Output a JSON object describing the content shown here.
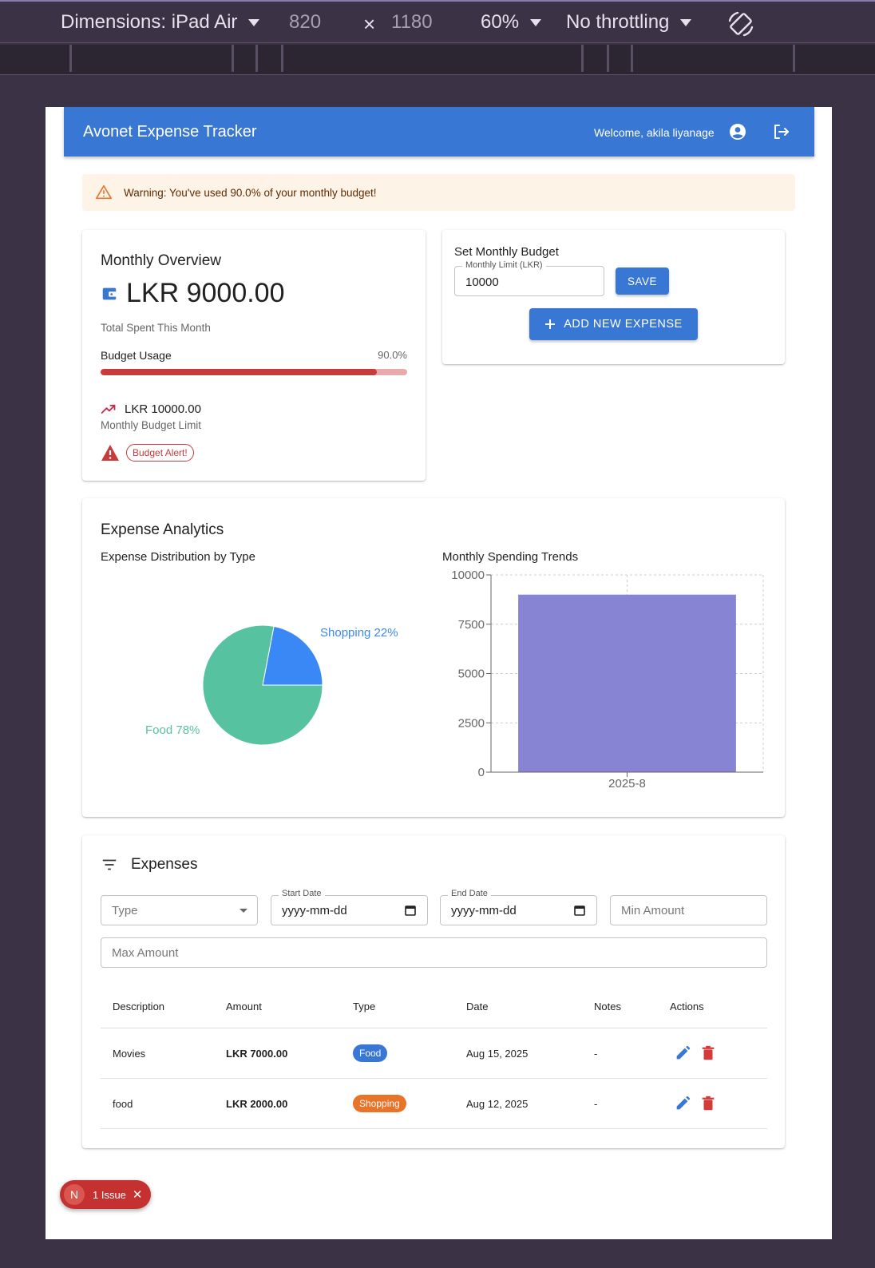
{
  "devtools": {
    "dimensions_label": "Dimensions: iPad Air",
    "width": "820",
    "times": "×",
    "height": "1180",
    "zoom": "60%",
    "throttling": "No throttling",
    "rotate_icon": "rotate-icon"
  },
  "header": {
    "title": "Avonet Expense Tracker",
    "welcome": "Welcome, akila liyanage",
    "account_icon": "account-circle-icon",
    "logout_icon": "logout-icon",
    "bg_color": "#3878d4"
  },
  "warning": {
    "text": "Warning: You've used 90.0% of your monthly budget!",
    "icon": "warning-outline-icon"
  },
  "overview": {
    "title": "Monthly Overview",
    "total": "LKR 9000.00",
    "total_label": "Total Spent This Month",
    "usage_label": "Budget Usage",
    "usage_pct": "90.0%",
    "usage_value": 0.9,
    "limit": "LKR 10000.00",
    "limit_label": "Monthly Budget Limit",
    "alert_chip": "Budget Alert!",
    "alert_color": "#c73b3b"
  },
  "budget": {
    "title": "Set Monthly Budget",
    "field_label": "Monthly Limit (LKR)",
    "field_value": "10000",
    "save_label": "SAVE",
    "add_label": "ADD NEW EXPENSE"
  },
  "analytics": {
    "title": "Expense Analytics",
    "pie_title": "Expense Distribution by Type",
    "bar_title": "Monthly Spending Trends"
  },
  "chart_data": [
    {
      "type": "pie",
      "title": "Expense Distribution by Type",
      "slices": [
        {
          "label": "Food 78%",
          "name": "Food",
          "value": 78,
          "color": "#56c29f"
        },
        {
          "label": "Shopping 22%",
          "name": "Shopping",
          "value": 22,
          "color": "#3a88f6"
        }
      ]
    },
    {
      "type": "bar",
      "title": "Monthly Spending Trends",
      "categories": [
        "2025-8"
      ],
      "values": [
        9000
      ],
      "ylim": [
        0,
        10000
      ],
      "yticks": [
        0,
        2500,
        5000,
        7500,
        10000
      ],
      "bar_color": "#8884d4",
      "grid": true
    }
  ],
  "expenses": {
    "title": "Expenses",
    "filter_icon": "filter-list-icon",
    "filters": {
      "type_placeholder": "Type",
      "start_label": "Start Date",
      "start_value": "yyyy-mm-dd",
      "end_label": "End Date",
      "end_value": "yyyy-mm-dd",
      "min_placeholder": "Min Amount",
      "max_placeholder": "Max Amount"
    },
    "columns": [
      "Description",
      "Amount",
      "Type",
      "Date",
      "Notes",
      "Actions"
    ],
    "rows": [
      {
        "description": "Movies",
        "amount": "LKR 7000.00",
        "type": "Food",
        "type_color": "#3878d4",
        "date": "Aug 15, 2025",
        "notes": "-"
      },
      {
        "description": "food",
        "amount": "LKR 2000.00",
        "type": "Shopping",
        "type_color": "#e8742a",
        "date": "Aug 12, 2025",
        "notes": "-"
      }
    ]
  },
  "nextjs_badge": {
    "letter": "N",
    "issues": "1 Issue",
    "close": "✕"
  }
}
